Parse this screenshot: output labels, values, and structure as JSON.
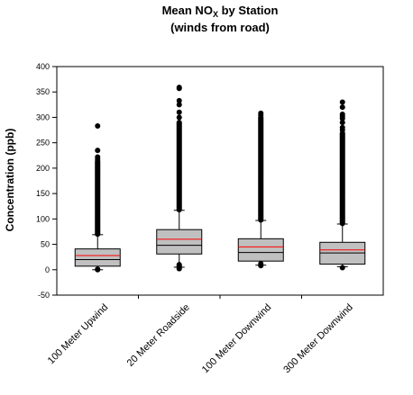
{
  "chart_data": {
    "type": "box",
    "title_line1": {
      "main": "Mean NO",
      "subscript": "X",
      "rest": " by Station"
    },
    "title_line2": "(winds from road)",
    "ylabel": "Concentration (ppb)",
    "ylim": [
      -50,
      400
    ],
    "yticks": [
      -50,
      0,
      50,
      100,
      150,
      200,
      250,
      300,
      350,
      400
    ],
    "grid": false,
    "colors": {
      "box_fill": "#c0c0c0",
      "mean_line": "#ff0000",
      "outline": "#000000"
    },
    "categories": [
      "100 Meter Upwind",
      "20 Meter Roadside",
      "100 Meter Downwind",
      "300 Meter Downwind"
    ],
    "series": [
      {
        "whisker_low": 0,
        "q1": 7,
        "median": 20,
        "mean": 28,
        "q3": 41,
        "whisker_high": 69,
        "outliers_low": [
          0,
          1
        ],
        "outlier_range": [
          70,
          215
        ],
        "outliers_sparse": [
          218,
          222,
          235,
          283
        ]
      },
      {
        "whisker_low": 5,
        "q1": 31,
        "median": 48,
        "mean": 60,
        "q3": 79,
        "whisker_high": 117,
        "outliers_low": [
          2,
          4,
          6,
          8,
          10
        ],
        "outlier_range": [
          118,
          290
        ],
        "outliers_sparse": [
          300,
          310,
          325,
          333,
          357,
          359
        ]
      },
      {
        "whisker_low": 9,
        "q1": 17,
        "median": 34,
        "mean": 45,
        "q3": 61,
        "whisker_high": 97,
        "outliers_low": [
          8,
          12
        ],
        "outlier_range": [
          98,
          300
        ],
        "outliers_sparse": [
          304,
          308
        ]
      },
      {
        "whisker_low": 6,
        "q1": 11,
        "median": 33,
        "mean": 39,
        "q3": 54,
        "whisker_high": 90,
        "outliers_low": [
          4
        ],
        "outlier_range": [
          91,
          270
        ],
        "outliers_sparse": [
          275,
          280,
          290,
          298,
          302,
          306,
          320,
          330
        ]
      }
    ]
  }
}
